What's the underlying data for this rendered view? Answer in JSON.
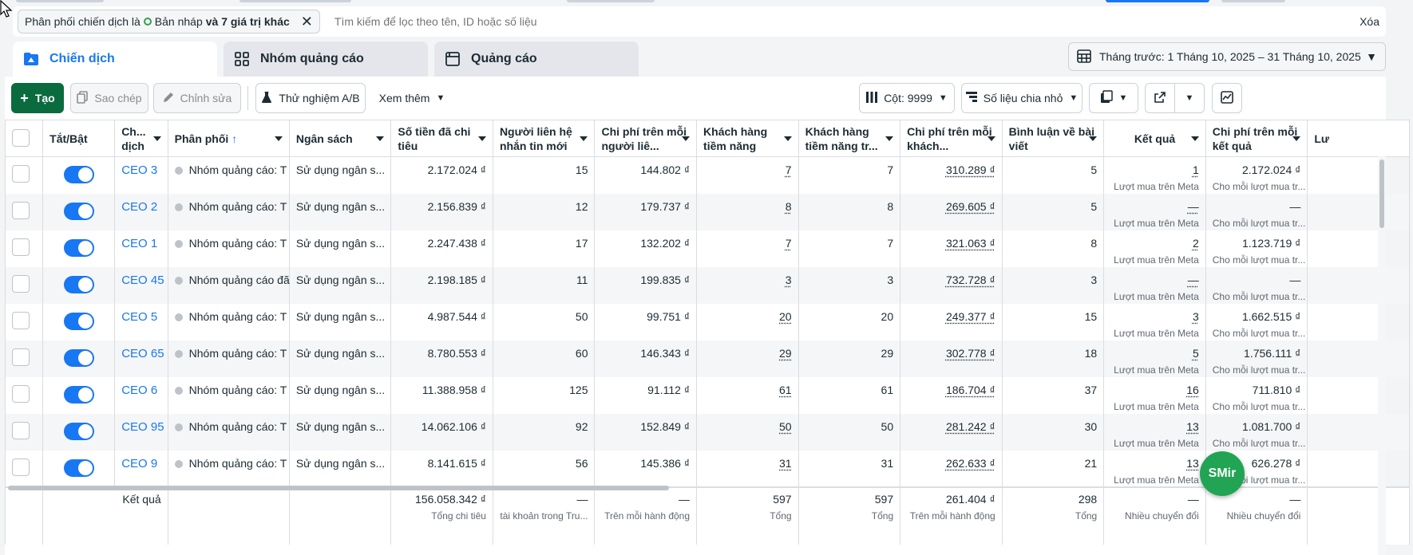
{
  "filter": {
    "chip_prefix": "Phân phối chiến dịch là",
    "chip_value": "Bản nháp",
    "chip_more": "và 7 giá trị khác",
    "search_placeholder": "Tìm kiếm để lọc theo tên, ID hoặc số liệu",
    "clear_label": "Xóa"
  },
  "tabs": [
    {
      "label": "Chiến dịch",
      "icon": "folder-icon",
      "active": true
    },
    {
      "label": "Nhóm quảng cáo",
      "icon": "grid-icon",
      "active": false
    },
    {
      "label": "Quảng cáo",
      "icon": "ad-icon",
      "active": false
    }
  ],
  "date_range": {
    "label": "Tháng trước: 1 Tháng 10, 2025 – 31 Tháng 10, 2025"
  },
  "toolbar": {
    "create": "Tạo",
    "duplicate": "Sao chép",
    "edit": "Chỉnh sửa",
    "ab_test": "Thử nghiệm A/B",
    "see_more": "Xem thêm",
    "columns": "Cột: 9999",
    "breakdown": "Số liệu chia nhỏ"
  },
  "table": {
    "headers": [
      "",
      "Tắt/Bật",
      "Ch... dịch",
      "Phân phối",
      "Ngân sách",
      "Số tiền đã chi tiêu",
      "Người liên hệ nhắn tin mới",
      "Chi phí trên mỗi người liê...",
      "Khách hàng tiềm năng",
      "Khách hàng tiềm năng tr...",
      "Chi phí trên mỗi khách...",
      "Bình luận về bài viết",
      "Kết quả",
      "Chi phí trên mỗi kết quả",
      "Lư"
    ],
    "rows": [
      {
        "name": "CEO 3",
        "delivery": "Nhóm quảng cáo: T",
        "budget": "Sử dụng ngân s...",
        "spent": "2.172.024 ₫",
        "contacts": "15",
        "cost_contact": "144.802 ₫",
        "leads": "7",
        "leads2": "7",
        "cost_lead": "310.289 ₫",
        "comments": "5",
        "result": "1",
        "result_sub": "Lượt mua trên Meta",
        "cpr": "2.172.024 ₫",
        "cpr_sub": "Cho mỗi lượt mua tr..."
      },
      {
        "name": "CEO 2",
        "delivery": "Nhóm quảng cáo: T",
        "budget": "Sử dụng ngân s...",
        "spent": "2.156.839 ₫",
        "contacts": "12",
        "cost_contact": "179.737 ₫",
        "leads": "8",
        "leads2": "8",
        "cost_lead": "269.605 ₫",
        "comments": "5",
        "result": "—",
        "result_sub": "Lượt mua trên Meta",
        "cpr": "—",
        "cpr_sub": "Cho mỗi lượt mua tr..."
      },
      {
        "name": "CEO 1",
        "delivery": "Nhóm quảng cáo: T",
        "budget": "Sử dụng ngân s...",
        "spent": "2.247.438 ₫",
        "contacts": "17",
        "cost_contact": "132.202 ₫",
        "leads": "7",
        "leads2": "7",
        "cost_lead": "321.063 ₫",
        "comments": "8",
        "result": "2",
        "result_sub": "Lượt mua trên Meta",
        "cpr": "1.123.719 ₫",
        "cpr_sub": "Cho mỗi lượt mua tr..."
      },
      {
        "name": "CEO 45",
        "delivery": "Nhóm quảng cáo đã",
        "budget": "Sử dụng ngân s...",
        "spent": "2.198.185 ₫",
        "contacts": "11",
        "cost_contact": "199.835 ₫",
        "leads": "3",
        "leads2": "3",
        "cost_lead": "732.728 ₫",
        "comments": "3",
        "result": "—",
        "result_sub": "Lượt mua trên Meta",
        "cpr": "—",
        "cpr_sub": "Cho mỗi lượt mua tr..."
      },
      {
        "name": "CEO 5",
        "delivery": "Nhóm quảng cáo: T",
        "budget": "Sử dụng ngân s...",
        "spent": "4.987.544 ₫",
        "contacts": "50",
        "cost_contact": "99.751 ₫",
        "leads": "20",
        "leads2": "20",
        "cost_lead": "249.377 ₫",
        "comments": "15",
        "result": "3",
        "result_sub": "Lượt mua trên Meta",
        "cpr": "1.662.515 ₫",
        "cpr_sub": "Cho mỗi lượt mua tr..."
      },
      {
        "name": "CEO 65",
        "delivery": "Nhóm quảng cáo: T",
        "budget": "Sử dụng ngân s...",
        "spent": "8.780.553 ₫",
        "contacts": "60",
        "cost_contact": "146.343 ₫",
        "leads": "29",
        "leads2": "29",
        "cost_lead": "302.778 ₫",
        "comments": "18",
        "result": "5",
        "result_sub": "Lượt mua trên Meta",
        "cpr": "1.756.111 ₫",
        "cpr_sub": "Cho mỗi lượt mua tr..."
      },
      {
        "name": "CEO 6",
        "delivery": "Nhóm quảng cáo: T",
        "budget": "Sử dụng ngân s...",
        "spent": "11.388.958 ₫",
        "contacts": "125",
        "cost_contact": "91.112 ₫",
        "leads": "61",
        "leads2": "61",
        "cost_lead": "186.704 ₫",
        "comments": "37",
        "result": "16",
        "result_sub": "Lượt mua trên Meta",
        "cpr": "711.810 ₫",
        "cpr_sub": "Cho mỗi lượt mua tr..."
      },
      {
        "name": "CEO 95",
        "delivery": "Nhóm quảng cáo: T",
        "budget": "Sử dụng ngân s...",
        "spent": "14.062.106 ₫",
        "contacts": "92",
        "cost_contact": "152.849 ₫",
        "leads": "50",
        "leads2": "50",
        "cost_lead": "281.242 ₫",
        "comments": "30",
        "result": "13",
        "result_sub": "Lượt mua trên Meta",
        "cpr": "1.081.700 ₫",
        "cpr_sub": "Cho mỗi lượt mua tr..."
      },
      {
        "name": "CEO 9",
        "delivery": "Nhóm quảng cáo: T",
        "budget": "Sử dụng ngân s...",
        "spent": "8.141.615 ₫",
        "contacts": "56",
        "cost_contact": "145.386 ₫",
        "leads": "31",
        "leads2": "31",
        "cost_lead": "262.633 ₫",
        "comments": "21",
        "result": "13",
        "result_sub": "Lượt mua trên Meta",
        "cpr": "626.278 ₫",
        "cpr_sub": "Cho mỗi lượt mua tr..."
      }
    ],
    "totals": {
      "label": "Kết quả",
      "spent": "156.058.342 ₫",
      "spent_sub": "Tổng chi tiêu",
      "contacts": "—",
      "contacts_sub": "tài khoản trong Tru...",
      "cost_contact": "—",
      "cost_contact_sub": "Trên mỗi hành động",
      "leads": "597",
      "leads_sub": "Tổng",
      "leads2": "597",
      "leads2_sub": "Tổng",
      "cost_lead": "261.404 ₫",
      "cost_lead_sub": "Trên mỗi hành động",
      "comments": "298",
      "comments_sub": "Tổng",
      "result": "—",
      "result_sub": "Nhiều chuyển đổi",
      "cpr": "—",
      "cpr_sub": "Nhiều chuyển đổi"
    }
  },
  "fab": {
    "label": "SMir"
  },
  "colors": {
    "primary_green": "#0a6b3f",
    "link_blue": "#1877f2",
    "toggle_blue": "#1877f2",
    "fab_green": "#21a453"
  }
}
